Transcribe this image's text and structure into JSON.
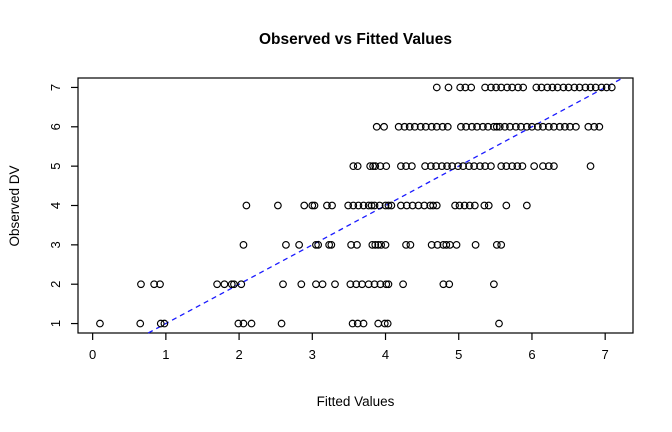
{
  "chart_data": {
    "type": "scatter",
    "title": "Observed vs Fitted Values",
    "xlabel": "Fitted Values",
    "ylabel": "Observed DV",
    "xlim": [
      -0.2,
      7.38
    ],
    "ylim": [
      0.76,
      7.24
    ],
    "x_ticks": [
      "0",
      "1",
      "2",
      "3",
      "4",
      "5",
      "6",
      "7"
    ],
    "x_tick_values": [
      0,
      1,
      2,
      3,
      4,
      5,
      6,
      7
    ],
    "y_ticks": [
      "1",
      "2",
      "3",
      "4",
      "5",
      "6",
      "7"
    ],
    "y_tick_values": [
      1,
      2,
      3,
      4,
      5,
      6,
      7
    ],
    "grid": false,
    "legend": "none",
    "point_style": {
      "marker": "open-circle",
      "color": "#000000"
    },
    "reference_line": {
      "name": "identity-line",
      "equation": "y = x",
      "style": "dashed",
      "color": "#1a1aff",
      "from": 0.76,
      "to": 7.24
    },
    "series": [
      {
        "name": "observed-1",
        "observed": 1,
        "fitted": [
          0.1,
          0.65,
          0.93,
          0.98,
          1.99,
          2.06,
          2.17,
          2.58,
          3.55,
          3.62,
          3.7,
          3.9,
          3.99,
          4.03,
          5.55
        ]
      },
      {
        "name": "observed-2",
        "observed": 2,
        "fitted": [
          0.66,
          0.84,
          0.92,
          1.7,
          1.8,
          1.9,
          1.93,
          2.03,
          2.6,
          2.85,
          3.05,
          3.14,
          3.31,
          3.52,
          3.6,
          3.68,
          3.77,
          3.85,
          3.93,
          4.01,
          4.04,
          4.24,
          4.79,
          4.87,
          5.48
        ]
      },
      {
        "name": "observed-3",
        "observed": 3,
        "fitted": [
          2.06,
          2.64,
          2.82,
          3.05,
          3.08,
          3.23,
          3.26,
          3.53,
          3.61,
          3.82,
          3.86,
          3.9,
          3.94,
          4.0,
          4.28,
          4.34,
          4.63,
          4.71,
          4.79,
          4.83,
          4.88,
          4.97,
          5.23,
          5.52,
          5.58
        ]
      },
      {
        "name": "observed-4",
        "observed": 4,
        "fitted": [
          2.1,
          2.53,
          2.89,
          3.0,
          3.03,
          3.2,
          3.27,
          3.49,
          3.56,
          3.63,
          3.7,
          3.77,
          3.81,
          3.85,
          3.92,
          4.0,
          4.04,
          4.08,
          4.21,
          4.29,
          4.37,
          4.45,
          4.53,
          4.61,
          4.65,
          4.7,
          4.95,
          5.01,
          5.08,
          5.15,
          5.22,
          5.35,
          5.41,
          5.65,
          5.93
        ]
      },
      {
        "name": "observed-5",
        "observed": 5,
        "fitted": [
          3.56,
          3.62,
          3.79,
          3.83,
          3.86,
          3.93,
          4.01,
          4.21,
          4.28,
          4.36,
          4.54,
          4.62,
          4.69,
          4.77,
          4.84,
          4.91,
          4.99,
          5.06,
          5.14,
          5.21,
          5.29,
          5.36,
          5.44,
          5.58,
          5.65,
          5.73,
          5.8,
          5.87,
          6.03,
          6.15,
          6.23,
          6.3,
          6.8
        ]
      },
      {
        "name": "observed-6",
        "observed": 6,
        "fitted": [
          3.88,
          3.98,
          4.18,
          4.26,
          4.33,
          4.4,
          4.48,
          4.55,
          4.63,
          4.7,
          4.78,
          4.85,
          5.03,
          5.1,
          5.18,
          5.25,
          5.33,
          5.4,
          5.48,
          5.52,
          5.56,
          5.63,
          5.7,
          5.78,
          5.85,
          5.93,
          6.0,
          6.08,
          6.15,
          6.23,
          6.3,
          6.38,
          6.45,
          6.52,
          6.6,
          6.77,
          6.85,
          6.92
        ]
      },
      {
        "name": "observed-7",
        "observed": 7,
        "fitted": [
          4.7,
          4.86,
          5.02,
          5.09,
          5.17,
          5.36,
          5.44,
          5.51,
          5.58,
          5.66,
          5.73,
          5.81,
          5.88,
          6.06,
          6.13,
          6.21,
          6.28,
          6.35,
          6.43,
          6.5,
          6.58,
          6.65,
          6.73,
          6.8,
          6.87,
          6.95,
          7.02,
          7.09
        ]
      }
    ]
  }
}
